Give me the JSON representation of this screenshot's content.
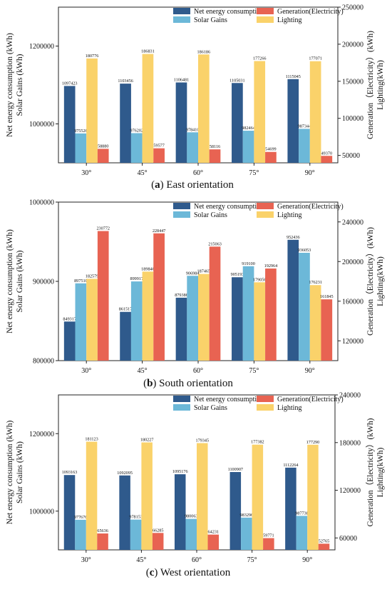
{
  "palette": {
    "net": "#2F5A8C",
    "solar": "#6CB8D8",
    "lighting": "#FAD26A",
    "generation": "#E86352"
  },
  "chart_data": [
    {
      "type": "bar",
      "id": "east",
      "caption_letter": "(a)",
      "caption_text": " East orientation",
      "categories": [
        "30°",
        "45°",
        "60°",
        "75°",
        "90°"
      ],
      "left_axis_label_1": "Net energy consumption (kWh)",
      "left_axis_label_2": "Solar Gains (kWh)",
      "right_axis_label_1": "Generation（Electricity）(kWh)",
      "right_axis_label_2": "Lighting(kWh)",
      "left_ylim": [
        900000,
        1300000
      ],
      "left_ticks": [
        1000000,
        1200000
      ],
      "right_ylim": [
        40000,
        250000
      ],
      "right_ticks": [
        50000,
        100000,
        150000,
        200000,
        250000
      ],
      "legend": [
        "Net energy consumption",
        "Solar Gains",
        "Generation(Electricity)",
        "Lighting"
      ],
      "series": [
        {
          "name": "Net energy consumption",
          "axis": "left",
          "values": [
            1097423,
            1103456,
            1106481,
            1105031,
            1115045
          ],
          "labels": [
            "1097423",
            "1103456",
            "1106481",
            "1105031",
            "1115045"
          ]
        },
        {
          "name": "Solar Gains",
          "axis": "left",
          "values": [
            975526,
            976202,
            978410,
            982464,
            987344
          ],
          "labels": [
            "975526",
            "976202",
            "978410",
            "982464",
            "987344"
          ]
        },
        {
          "name": "Lighting",
          "axis": "right",
          "values": [
            180776,
            186831,
            186186,
            177266,
            177071
          ],
          "labels": [
            "180776",
            "186831",
            "186186",
            "177266",
            "177071"
          ]
        },
        {
          "name": "Generation(Electricity)",
          "axis": "right",
          "values": [
            58880,
            59577,
            58116,
            54699,
            49370
          ],
          "labels": [
            "58880",
            "59577",
            "58116",
            "54699",
            "49370"
          ]
        }
      ]
    },
    {
      "type": "bar",
      "id": "south",
      "caption_letter": "(b)",
      "caption_text": " South orientation",
      "categories": [
        "30°",
        "45°",
        "60°",
        "75°",
        "90°"
      ],
      "left_axis_label_1": "Net energy consumption (kWh)",
      "left_axis_label_2": "Solar Gains (kWh)",
      "right_axis_label_1": "Generation（Electricity）(kWh)",
      "right_axis_label_2": "Lighting(kWh)",
      "left_ylim": [
        800000,
        1000000
      ],
      "left_ticks": [
        800000,
        900000,
        1000000
      ],
      "right_ylim": [
        100000,
        260000
      ],
      "right_ticks": [
        120000,
        160000,
        200000,
        240000
      ],
      "legend": [
        "Net energy consumption",
        "Solar Gains",
        "Generation(Electricity)",
        "Lighting"
      ],
      "series": [
        {
          "name": "Net energy consumption",
          "axis": "left",
          "values": [
            849317,
            861517,
            879386,
            905193,
            952436
          ],
          "labels": [
            "849317",
            "861517",
            "879386",
            "905193",
            "952436"
          ]
        },
        {
          "name": "Solar Gains",
          "axis": "left",
          "values": [
            897510,
            899917,
            906984,
            919100,
            936053
          ],
          "labels": [
            "897510",
            "899917",
            "906984",
            "919100",
            "936053"
          ]
        },
        {
          "name": "Lighting",
          "axis": "right",
          "values": [
            182579,
            189846,
            187465,
            179056,
            176231
          ],
          "labels": [
            "182579",
            "189846",
            "187465",
            "179056",
            "176231"
          ]
        },
        {
          "name": "Generation(Electricity)",
          "axis": "right",
          "values": [
            230772,
            228447,
            215063,
            192964,
            161845
          ],
          "labels": [
            "230772",
            "228447",
            "215063",
            "192964",
            "161845"
          ]
        }
      ]
    },
    {
      "type": "bar",
      "id": "west",
      "caption_letter": "(c)",
      "caption_text": " West orientation",
      "categories": [
        "30°",
        "45°",
        "60°",
        "75°",
        "90°"
      ],
      "left_axis_label_1": "Net energy consumption (kWh)",
      "left_axis_label_2": "Solar Gains (kWh)",
      "right_axis_label_1": "Generation（Electricity）(kWh)",
      "right_axis_label_2": "Lighting(kWh)",
      "left_ylim": [
        900000,
        1300000
      ],
      "left_ticks": [
        1000000,
        1200000
      ],
      "right_ylim": [
        45000,
        240000
      ],
      "right_ticks": [
        60000,
        120000,
        180000,
        240000
      ],
      "legend": [
        "Net energy consumption",
        "Solar Gains",
        "Generation(Electricity)",
        "Lighting"
      ],
      "series": [
        {
          "name": "Net energy consumption",
          "axis": "left",
          "values": [
            1093163,
            1092095,
            1095176,
            1100907,
            1112264
          ],
          "labels": [
            "1093163",
            "1092095",
            "1095176",
            "1100907",
            "1112264"
          ]
        },
        {
          "name": "Solar Gains",
          "axis": "left",
          "values": [
            977676,
            978153,
            980063,
            983296,
            987738
          ],
          "labels": [
            "977676",
            "978153",
            "980063",
            "983296",
            "987738"
          ]
        },
        {
          "name": "Lighting",
          "axis": "right",
          "values": [
            181123,
            180227,
            179345,
            177382,
            177290
          ],
          "labels": [
            "181123",
            "180227",
            "179345",
            "177382",
            "177290"
          ]
        },
        {
          "name": "Generation(Electricity)",
          "axis": "right",
          "values": [
            65636,
            66285,
            64231,
            59771,
            52765
          ],
          "labels": [
            "65636",
            "66285",
            "64231",
            "59771",
            "52765"
          ]
        }
      ]
    }
  ]
}
